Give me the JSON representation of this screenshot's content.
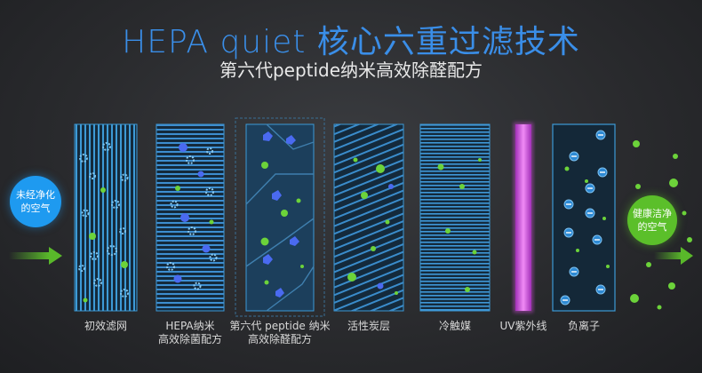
{
  "header": {
    "title": "HEPA quiet 核心六重过滤技术",
    "subtitle": "第六代peptide纳米高效除醛配方"
  },
  "bubbles": {
    "in_line1": "未经净化",
    "in_line2": "的空气",
    "out_line1": "健康洁净",
    "out_line2": "的空气"
  },
  "filters": [
    {
      "id": "prefilter",
      "line1": "初效滤网",
      "line2": ""
    },
    {
      "id": "hepa",
      "line1": "HEPA纳米",
      "line2": "高效除菌配方"
    },
    {
      "id": "peptide",
      "line1": "第六代 peptide 纳米",
      "line2": "高效除醛配方"
    },
    {
      "id": "carbon",
      "line1": "活性炭层",
      "line2": ""
    },
    {
      "id": "cold-catalyst",
      "line1": "冷触媒",
      "line2": ""
    },
    {
      "id": "uv",
      "line1": "UV紫外线",
      "line2": ""
    },
    {
      "id": "anion",
      "line1": "负离子",
      "line2": ""
    }
  ],
  "colors": {
    "accent_blue": "#3a8ee8",
    "filter_blue": "#3d9ad6",
    "green_particle": "#6cd33a",
    "uv_purple": "#d64ee0",
    "arrow_green": "#59b82a"
  }
}
